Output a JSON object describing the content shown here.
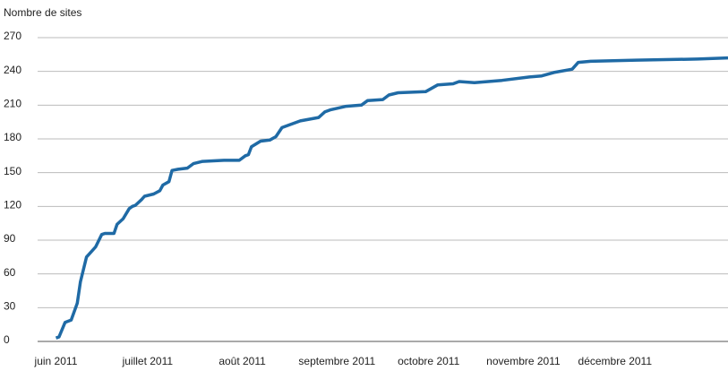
{
  "chart_data": {
    "type": "line",
    "y_label": "Nombre de sites",
    "x": [
      0,
      1,
      3,
      5,
      7,
      8,
      10,
      11,
      13,
      15,
      16,
      19,
      20,
      22,
      24,
      25,
      26,
      28,
      29,
      32,
      34,
      35,
      37,
      38,
      40,
      43,
      45,
      48,
      55,
      60,
      62,
      63,
      64,
      67,
      70,
      72,
      74,
      76,
      80,
      86,
      88,
      90,
      95,
      100,
      102,
      107,
      109,
      112,
      121,
      125,
      130,
      132,
      137,
      146,
      155,
      159,
      163,
      169,
      171,
      175,
      190,
      210,
      220
    ],
    "series": [
      {
        "name": "Nombre de sites",
        "color": "#1f6aa5",
        "values": [
          3,
          4,
          17,
          19,
          34,
          53,
          75,
          78,
          84,
          95,
          96,
          96,
          104,
          109,
          118,
          120,
          121,
          126,
          129,
          131,
          134,
          139,
          142,
          152,
          153,
          154,
          158,
          160,
          161,
          161,
          165,
          166,
          173,
          178,
          179,
          182,
          190,
          192,
          196,
          199,
          204,
          206,
          209,
          210,
          214,
          215,
          219,
          221,
          222,
          228,
          229,
          231,
          230,
          232,
          235,
          236,
          239,
          242,
          248,
          249,
          250,
          251,
          252
        ]
      }
    ],
    "xlim": [
      -6,
      220
    ],
    "xticks": [
      {
        "value": 0,
        "label": "juin 2011"
      },
      {
        "value": 30,
        "label": "juillet 2011"
      },
      {
        "value": 61,
        "label": "août 2011"
      },
      {
        "value": 92,
        "label": "septembre 2011"
      },
      {
        "value": 122,
        "label": "octobre 2011"
      },
      {
        "value": 153,
        "label": "novembre 2011"
      },
      {
        "value": 183,
        "label": "décembre 2011"
      }
    ],
    "ylim": [
      0,
      270
    ],
    "yticks": [
      0,
      30,
      60,
      90,
      120,
      150,
      180,
      210,
      240,
      270
    ],
    "grid": true
  }
}
